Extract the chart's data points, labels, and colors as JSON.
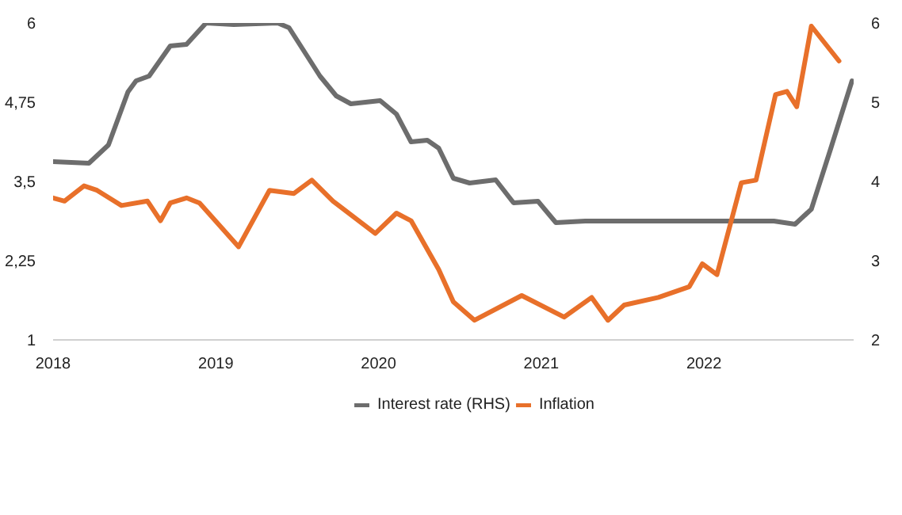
{
  "chart_data": {
    "type": "line",
    "xlim": [
      2018,
      2022.92
    ],
    "xticks": [
      2018,
      2019,
      2020,
      2021,
      2022
    ],
    "ylim": [
      1,
      6
    ],
    "yticks": [
      1,
      {
        "value": 2.25,
        "label": "2,25"
      },
      {
        "value": 3.5,
        "label": "3,5"
      },
      {
        "value": 4.75,
        "label": "4,75"
      },
      6
    ],
    "y2lim": [
      2,
      6
    ],
    "y2ticks": [
      2,
      3,
      4,
      5,
      6
    ],
    "grid": false,
    "legend": "bottom",
    "marker": "none",
    "line_style": "solid",
    "series": [
      {
        "name": "Interest rate (RHS)",
        "color": "#6d6d6d",
        "axis": "y2",
        "x": [
          2018.0,
          2018.22,
          2018.34,
          2018.46,
          2018.51,
          2018.59,
          2018.72,
          2018.82,
          2018.94,
          2019.11,
          2019.38,
          2019.45,
          2019.64,
          2019.74,
          2019.83,
          2020.01,
          2020.11,
          2020.2,
          2020.3,
          2020.37,
          2020.46,
          2020.56,
          2020.72,
          2020.83,
          2020.98,
          2021.09,
          2021.27,
          2022.43,
          2022.56,
          2022.66,
          2022.78,
          2022.91
        ],
        "values": [
          4.25,
          4.23,
          4.46,
          5.13,
          5.27,
          5.33,
          5.71,
          5.73,
          6.0,
          5.98,
          6.0,
          5.94,
          5.33,
          5.08,
          4.98,
          5.02,
          4.85,
          4.5,
          4.52,
          4.42,
          4.04,
          3.98,
          4.02,
          3.73,
          3.75,
          3.48,
          3.5,
          3.5,
          3.46,
          3.65,
          4.42,
          5.27
        ]
      },
      {
        "name": "Inflation",
        "color": "#e8702a",
        "x": [
          2018.0,
          2018.07,
          2018.19,
          2018.27,
          2018.42,
          2018.58,
          2018.66,
          2018.72,
          2018.82,
          2018.9,
          2019.14,
          2019.33,
          2019.48,
          2019.59,
          2019.72,
          2019.98,
          2020.11,
          2020.2,
          2020.37,
          2020.46,
          2020.59,
          2020.88,
          2021.14,
          2021.31,
          2021.41,
          2021.51,
          2021.72,
          2021.91,
          2021.99,
          2022.08,
          2022.23,
          2022.32,
          2022.44,
          2022.51,
          2022.57,
          2022.66,
          2022.83
        ],
        "values": [
          3.24,
          3.19,
          3.43,
          3.36,
          3.12,
          3.19,
          2.88,
          3.16,
          3.24,
          3.16,
          2.47,
          3.36,
          3.31,
          3.52,
          3.19,
          2.68,
          3.0,
          2.88,
          2.11,
          1.6,
          1.31,
          1.7,
          1.36,
          1.67,
          1.31,
          1.55,
          1.67,
          1.84,
          2.2,
          2.03,
          3.48,
          3.52,
          4.87,
          4.92,
          4.68,
          5.95,
          5.4
        ]
      }
    ]
  }
}
